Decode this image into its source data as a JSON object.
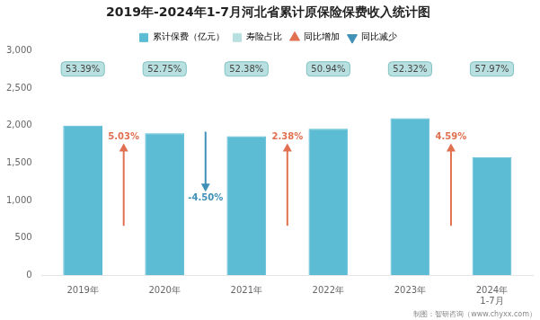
{
  "chart_data": {
    "type": "bar",
    "title": "2019年-2024年1-7月河北省累计原保险保费收入统计图",
    "categories": [
      "2019年",
      "2020年",
      "2021年",
      "2022年",
      "2023年",
      "2024年\n1-7月"
    ],
    "series": [
      {
        "name": "累计保费（亿元）",
        "color": "#5bbcd4",
        "values": [
          2000,
          1900,
          1860,
          1960,
          2100,
          1580
        ]
      }
    ],
    "ylim": [
      0,
      3000
    ],
    "yticks": [
      0,
      500,
      1000,
      1500,
      2000,
      2500,
      3000
    ],
    "grid": false,
    "legend": "top",
    "annotations": [
      {
        "name": "寿险占比",
        "color": "#b8e0e0",
        "labels": [
          "53.39%",
          "52.75%",
          "52.38%",
          "50.94%",
          "52.32%",
          "57.97%"
        ]
      },
      {
        "name": "同比增加",
        "color": "#e07050",
        "direction": "up",
        "labels": [
          {
            "between": [
              "2019年",
              "2020年"
            ],
            "text": "5.03%"
          },
          {
            "between": [
              "2021年",
              "2022年"
            ],
            "text": "2.38%"
          },
          {
            "between": [
              "2023年",
              "2024年\n1-7月"
            ],
            "text": "4.59%"
          }
        ]
      },
      {
        "name": "同比减少",
        "color": "#4090b8",
        "direction": "down",
        "labels": [
          {
            "between": [
              "2020年",
              "2021年"
            ],
            "text": "-4.50%"
          }
        ]
      }
    ],
    "source": "制图：智研咨询（www.chyxx.com）"
  }
}
